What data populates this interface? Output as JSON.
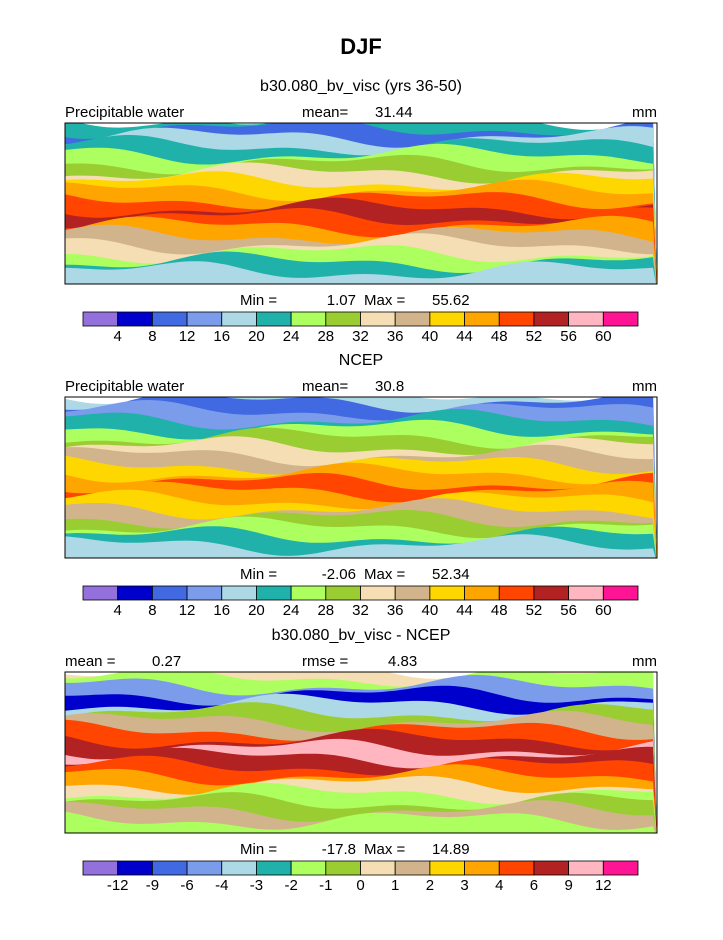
{
  "title": "DJF",
  "colors": [
    "#9370db",
    "#0000cd",
    "#4169e1",
    "#7b9ceb",
    "#add8e6",
    "#20b2aa",
    "#adff5f",
    "#9acd32",
    "#f5deb3",
    "#d2b48c",
    "#ffd700",
    "#ffa500",
    "#ff4500",
    "#b22222",
    "#ffb6c1",
    "#ff1493"
  ],
  "panels": [
    {
      "title": "b30.080_bv_visc (yrs 36-50)",
      "left_label": "Precipitable water",
      "stat1_label": "mean=",
      "stat1": 31.44,
      "units": "mm",
      "min_label": "Min =",
      "min": 1.07,
      "max_label": "Max =",
      "max": 55.62,
      "levels": [
        4,
        8,
        12,
        16,
        20,
        24,
        28,
        32,
        36,
        40,
        44,
        48,
        52,
        56,
        60
      ]
    },
    {
      "title": "NCEP",
      "left_label": "Precipitable water",
      "stat1_label": "mean=",
      "stat1": 30.8,
      "units": "mm",
      "min_label": "Min =",
      "min": -2.06,
      "max_label": "Max =",
      "max": 52.34,
      "levels": [
        4,
        8,
        12,
        16,
        20,
        24,
        28,
        32,
        36,
        40,
        44,
        48,
        52,
        56,
        60
      ]
    },
    {
      "title": "b30.080_bv_visc - NCEP",
      "stat1_label": "mean =",
      "stat1": 0.27,
      "stat2_label": "rmse =",
      "stat2": 4.83,
      "units": "mm",
      "min_label": "Min =",
      "min": -17.8,
      "max_label": "Max =",
      "max": 14.89,
      "levels": [
        -12,
        -9,
        -6,
        -4,
        -3,
        -2,
        -1,
        0,
        1,
        2,
        3,
        4,
        6,
        9,
        12
      ]
    }
  ]
}
